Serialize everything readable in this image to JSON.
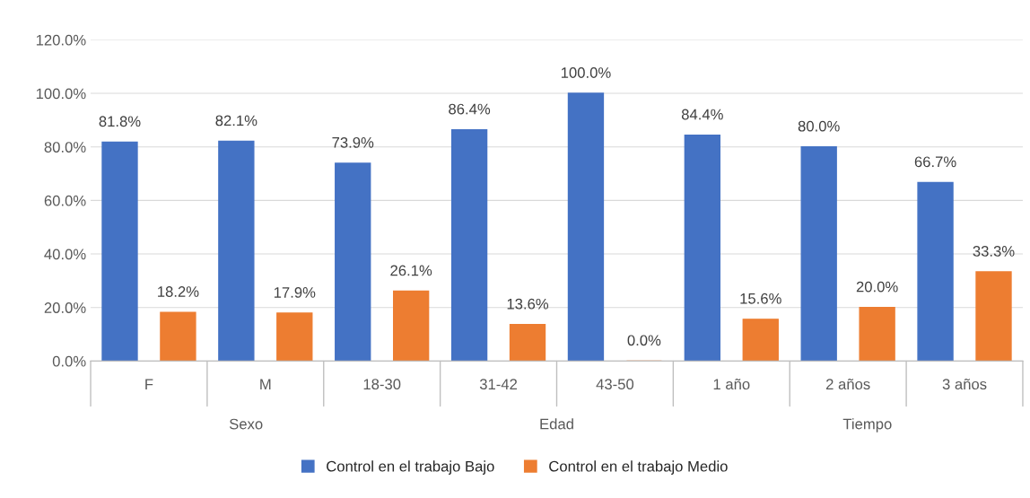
{
  "chart_data": {
    "type": "bar",
    "categories": [
      "F",
      "M",
      "18-30",
      "31-42",
      "43-50",
      "1 año",
      "2 años",
      "3 años"
    ],
    "series": [
      {
        "name": "Control en el trabajo Bajo",
        "color": "#4472c4",
        "values": [
          81.8,
          82.1,
          73.9,
          86.4,
          100.0,
          84.4,
          80.0,
          66.7
        ],
        "value_labels": [
          "81.8%",
          "82.1%",
          "73.9%",
          "86.4%",
          "100.0%",
          "84.4%",
          "80.0%",
          "66.7%"
        ]
      },
      {
        "name": "Control en el trabajo Medio",
        "color": "#ed7d31",
        "values": [
          18.2,
          17.9,
          26.1,
          13.6,
          0.0,
          15.6,
          20.0,
          33.3
        ],
        "value_labels": [
          "18.2%",
          "17.9%",
          "26.1%",
          "13.6%",
          "0.0%",
          "15.6%",
          "20.0%",
          "33.3%"
        ]
      }
    ],
    "ylim": [
      0,
      120
    ],
    "yticks": [
      {
        "value": 0,
        "label": "0.0%"
      },
      {
        "value": 20,
        "label": "20.0%"
      },
      {
        "value": 40,
        "label": "40.0%"
      },
      {
        "value": 60,
        "label": "60.0%"
      },
      {
        "value": 80,
        "label": "80.0%"
      },
      {
        "value": 100,
        "label": "100.0%"
      },
      {
        "value": 120,
        "label": "120.0%"
      }
    ],
    "grid": "y",
    "legend": "bottom",
    "annotations": [
      "Sexo",
      "Edad",
      "Tiempo"
    ]
  }
}
